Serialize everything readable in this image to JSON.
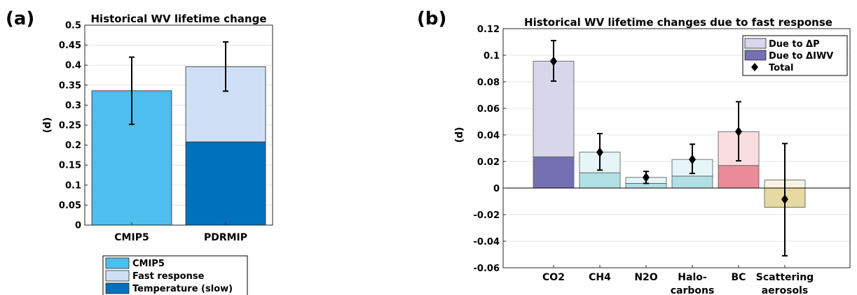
{
  "chart_data": [
    {
      "panel": "(a)",
      "type": "bar",
      "stacked": true,
      "title": "Historical WV lifetime change",
      "ylabel": "(d)",
      "ylim": [
        0,
        0.5
      ],
      "yticks": [
        "0",
        "0.05",
        "0.1",
        "0.15",
        "0.2",
        "0.25",
        "0.3",
        "0.35",
        "0.4",
        "0.45",
        "0.5"
      ],
      "categories": [
        "CMIP5",
        "PDRMIP"
      ],
      "series": [
        {
          "name": "CMIP5",
          "color": "#4dbeee",
          "values": [
            0.336,
            0
          ]
        },
        {
          "name": "Temperature (slow)",
          "color": "#0072bd",
          "values": [
            0,
            0.208
          ]
        },
        {
          "name": "Fast response",
          "color": "#cfe0f6",
          "values": [
            0,
            0.188
          ]
        }
      ],
      "totals": [
        0.336,
        0.396
      ],
      "error_low": [
        0.252,
        0.335
      ],
      "error_high": [
        0.42,
        0.458
      ],
      "legend": {
        "placement": "below",
        "entries": [
          {
            "label": "CMIP5",
            "color": "#4dbeee"
          },
          {
            "label": "Fast response",
            "color": "#cfe0f6"
          },
          {
            "label": "Temperature (slow)",
            "color": "#0072bd"
          }
        ]
      },
      "grid": true
    },
    {
      "panel": "(b)",
      "type": "bar",
      "stacked": true,
      "title": "Historical WV lifetime changes due to fast response",
      "ylabel": "(d)",
      "ylim": [
        -0.06,
        0.12
      ],
      "yticks": [
        "-0.06",
        "-0.04",
        "-0.02",
        "0",
        "0.02",
        "0.04",
        "0.06",
        "0.08",
        "0.1",
        "0.12"
      ],
      "categories": [
        [
          "CO2"
        ],
        [
          "CH4"
        ],
        [
          "N2O"
        ],
        [
          "Halo-",
          "carbons"
        ],
        [
          "BC"
        ],
        [
          "Scattering",
          "aerosols"
        ]
      ],
      "series": [
        {
          "name": "Due to ΔIWV",
          "values": [
            0.0235,
            0.0115,
            0.0035,
            0.009,
            0.017,
            -0.0145
          ],
          "colors": [
            "#7570b3",
            "#b0e0e6",
            "#b0e0e6",
            "#b0e0e6",
            "#e98b98",
            "#e6d9a2"
          ]
        },
        {
          "name": "Due to ΔP",
          "values": [
            0.072,
            0.0155,
            0.0045,
            0.0125,
            0.0255,
            0.006
          ],
          "colors": [
            "#d8d6ea",
            "#e5f5f8",
            "#e5f5f8",
            "#e5f5f8",
            "#f9dde1",
            "#f7f3e1"
          ]
        }
      ],
      "total": {
        "name": "Total",
        "values": [
          0.0955,
          0.027,
          0.008,
          0.0215,
          0.0425,
          -0.0085
        ]
      },
      "error_low": [
        0.0805,
        0.0135,
        0.0035,
        0.011,
        0.0205,
        -0.051
      ],
      "error_high": [
        0.111,
        0.041,
        0.0125,
        0.033,
        0.065,
        0.0335
      ],
      "legend": {
        "placement": "top-right",
        "entries": [
          {
            "label": "Due to ΔP",
            "color": "#d8d6ea",
            "marker": "patch"
          },
          {
            "label": "Due to ΔIWV",
            "color": "#7570b3",
            "marker": "patch"
          },
          {
            "label": "Total",
            "color": "#000000",
            "marker": "diamond"
          }
        ]
      },
      "grid": true
    }
  ]
}
